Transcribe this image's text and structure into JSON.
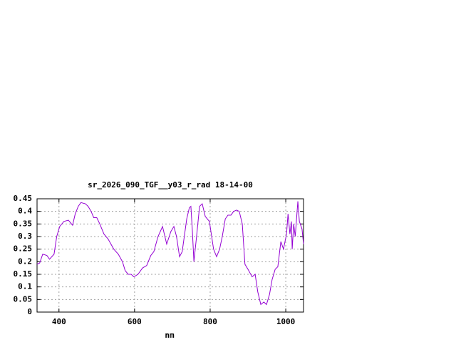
{
  "chart_data": {
    "type": "line",
    "title": "sr_2026_090_TGF__y03_r_rad 18-14-00",
    "x_label": "nm",
    "x": [
      342,
      349,
      357,
      368,
      375,
      387,
      394,
      402,
      413,
      425,
      436,
      443,
      451,
      458,
      470,
      477,
      485,
      492,
      500,
      508,
      519,
      530,
      545,
      557,
      568,
      575,
      583,
      591,
      598,
      609,
      621,
      632,
      643,
      651,
      662,
      674,
      685,
      696,
      704,
      711,
      719,
      726,
      738,
      745,
      749,
      753,
      757,
      764,
      772,
      779,
      787,
      798,
      809,
      817,
      825,
      832,
      840,
      847,
      855,
      862,
      870,
      877,
      885,
      892,
      900,
      911,
      919,
      926,
      934,
      942,
      949,
      957,
      964,
      972,
      979,
      987,
      994,
      1002,
      1006,
      1011,
      1015,
      1017,
      1021,
      1025,
      1032,
      1036,
      1043,
      1047
    ],
    "series": [
      {
        "name": null,
        "color": "#9400d3",
        "values": [
          0.19,
          0.195,
          0.23,
          0.225,
          0.21,
          0.23,
          0.3,
          0.34,
          0.36,
          0.365,
          0.345,
          0.39,
          0.42,
          0.435,
          0.43,
          0.42,
          0.4,
          0.375,
          0.375,
          0.35,
          0.31,
          0.29,
          0.25,
          0.23,
          0.2,
          0.165,
          0.15,
          0.15,
          0.14,
          0.15,
          0.175,
          0.185,
          0.225,
          0.24,
          0.3,
          0.34,
          0.27,
          0.32,
          0.34,
          0.3,
          0.22,
          0.24,
          0.37,
          0.415,
          0.42,
          0.32,
          0.2,
          0.3,
          0.42,
          0.43,
          0.38,
          0.36,
          0.25,
          0.22,
          0.25,
          0.3,
          0.37,
          0.385,
          0.385,
          0.4,
          0.405,
          0.4,
          0.35,
          0.19,
          0.17,
          0.14,
          0.15,
          0.08,
          0.03,
          0.04,
          0.03,
          0.07,
          0.13,
          0.17,
          0.18,
          0.28,
          0.25,
          0.31,
          0.39,
          0.31,
          0.36,
          0.25,
          0.35,
          0.3,
          0.44,
          0.36,
          0.33,
          0.27
        ]
      }
    ],
    "xlim": [
      342,
      1047
    ],
    "xticks": [
      400,
      600,
      800,
      1000
    ],
    "ylim": [
      0,
      0.45
    ],
    "yticks": [
      0,
      0.05,
      0.1,
      0.15,
      0.2,
      0.25,
      0.3,
      0.35,
      0.4,
      0.45
    ],
    "grid": true
  }
}
